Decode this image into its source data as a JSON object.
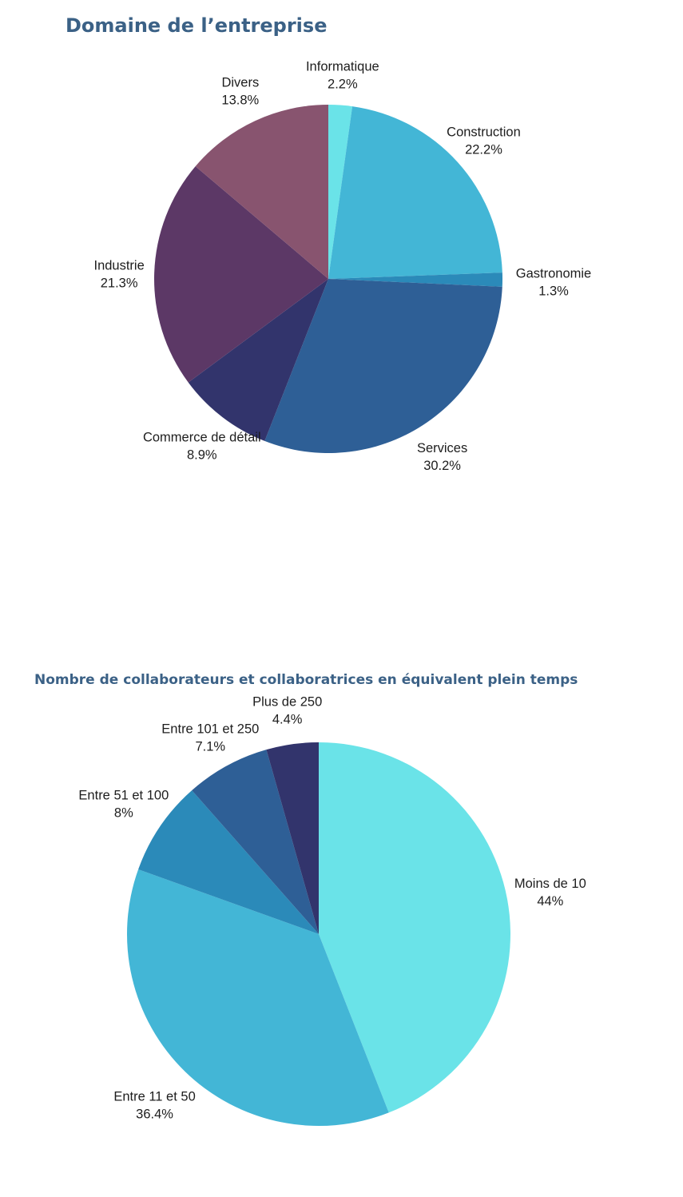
{
  "chart_data": [
    {
      "type": "pie",
      "title": "Domaine de l’entreprise",
      "start_angle_deg": 0,
      "direction": "clockwise",
      "slices": [
        {
          "label": "Informatique",
          "value": 2.2,
          "display": "2.2%",
          "color": "#6ae3e8"
        },
        {
          "label": "Construction",
          "value": 22.2,
          "display": "22.2%",
          "color": "#43b6d6"
        },
        {
          "label": "Gastronomie",
          "value": 1.3,
          "display": "1.3%",
          "color": "#2b8ab9"
        },
        {
          "label": "Services",
          "value": 30.2,
          "display": "30.2%",
          "color": "#2e5f96"
        },
        {
          "label": "Commerce de détail",
          "value": 8.9,
          "display": "8.9%",
          "color": "#32346c"
        },
        {
          "label": "Industrie",
          "value": 21.3,
          "display": "21.3%",
          "color": "#5c3866"
        },
        {
          "label": "Divers",
          "value": 13.8,
          "display": "13.8%",
          "color": "#88546f"
        }
      ]
    },
    {
      "type": "pie",
      "title": "Nombre de collaborateurs et collaboratrices en équivalent plein temps",
      "start_angle_deg": 0,
      "direction": "clockwise",
      "slices": [
        {
          "label": "Moins de 10",
          "value": 44,
          "display": "44%",
          "color": "#6ae3e8"
        },
        {
          "label": "Entre 11 et 50",
          "value": 36.4,
          "display": "36.4%",
          "color": "#43b6d6"
        },
        {
          "label": "Entre 51 et 100",
          "value": 8,
          "display": "8%",
          "color": "#2b8ab9"
        },
        {
          "label": "Entre 101 et 250",
          "value": 7.1,
          "display": "7.1%",
          "color": "#2e5f96"
        },
        {
          "label": "Plus de 250",
          "value": 4.4,
          "display": "4.4%",
          "color": "#32346c"
        }
      ]
    }
  ]
}
